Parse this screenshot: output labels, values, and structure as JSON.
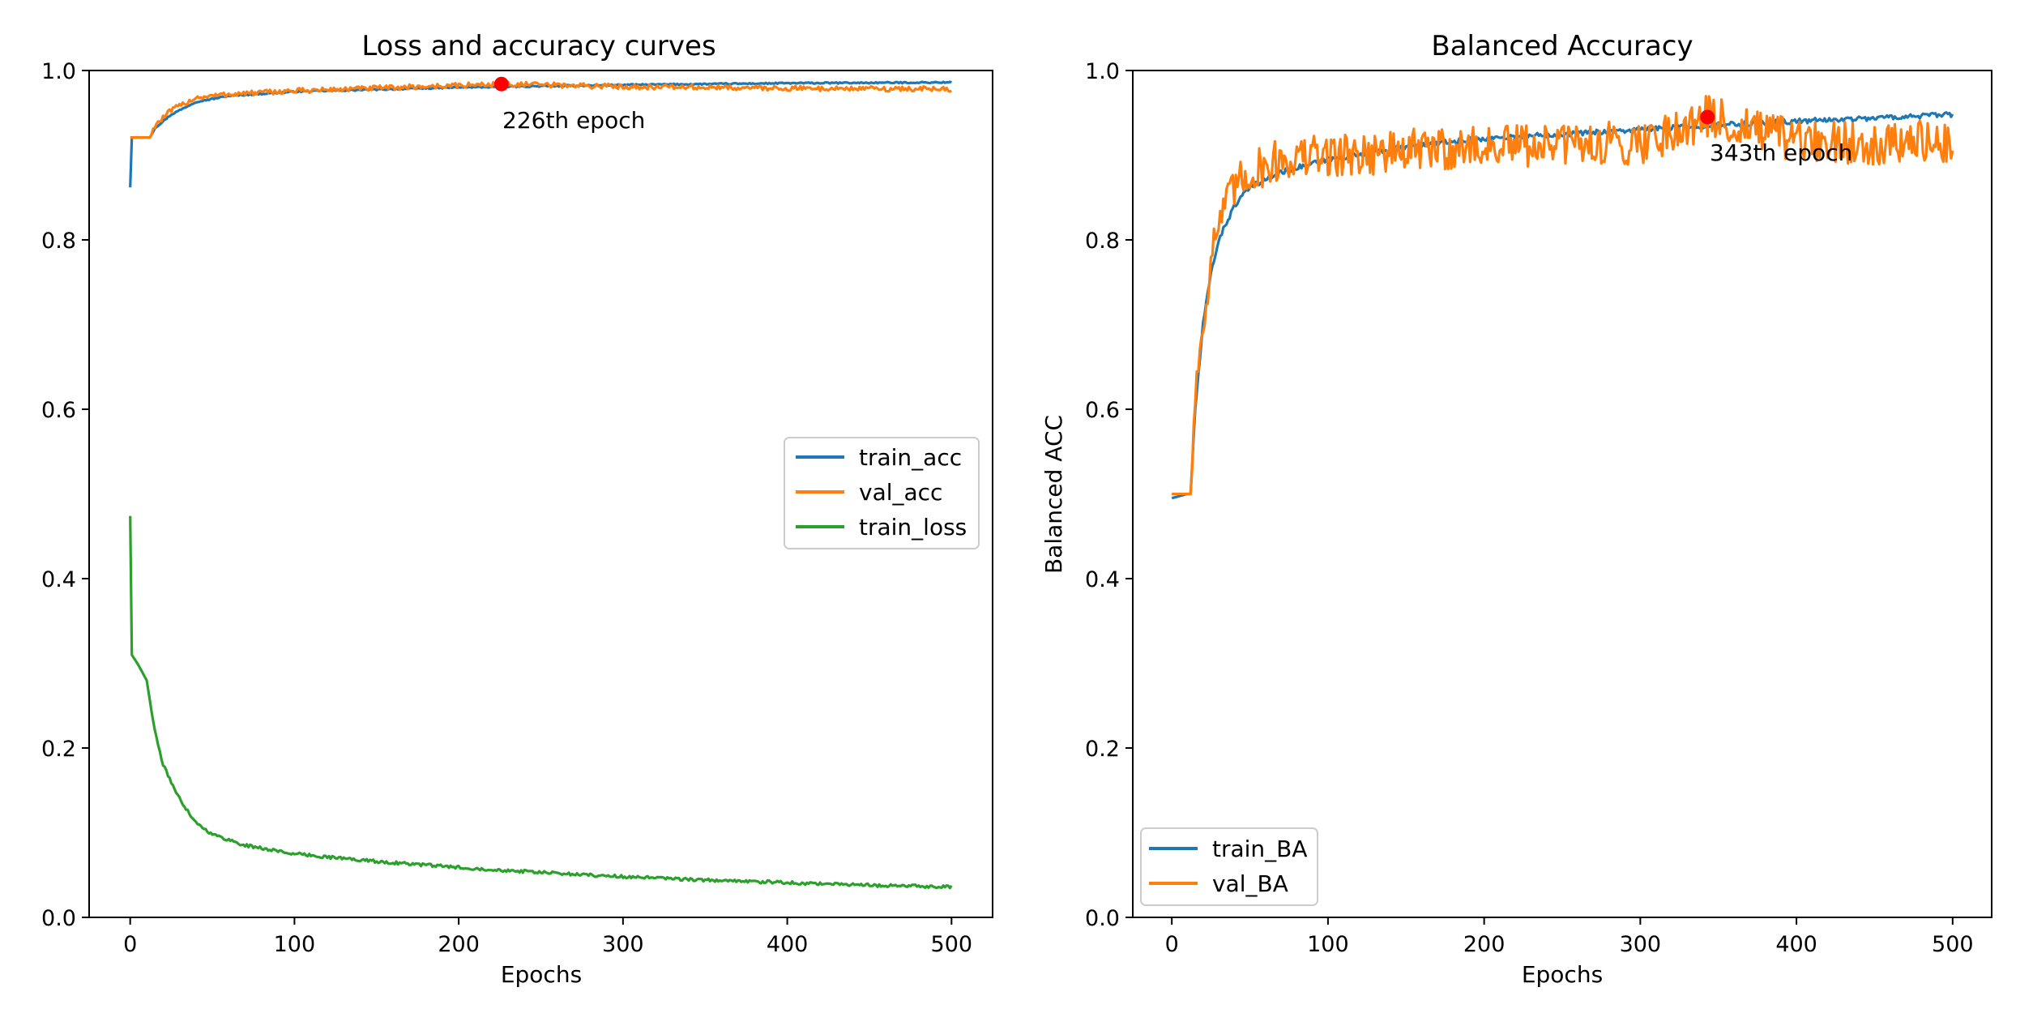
{
  "chart_data": [
    {
      "type": "line",
      "title": "Loss and accuracy curves",
      "xlabel": "Epochs",
      "ylabel": "",
      "xlim": [
        -25,
        525
      ],
      "ylim": [
        0.0,
        1.0
      ],
      "xticks": [
        0,
        100,
        200,
        300,
        400,
        500
      ],
      "yticks": [
        0.0,
        0.2,
        0.4,
        0.6,
        0.8,
        1.0
      ],
      "xtick_labels": [
        "0",
        "100",
        "200",
        "300",
        "400",
        "500"
      ],
      "ytick_labels": [
        "0.0",
        "0.2",
        "0.4",
        "0.6",
        "0.8",
        "1.0"
      ],
      "legend_position": "center-right",
      "series": [
        {
          "name": "train_acc",
          "color": "#1f77b4",
          "noise": 0.0008,
          "points": [
            [
              0,
              0.862
            ],
            [
              1,
              0.921
            ],
            [
              5,
              0.921
            ],
            [
              12,
              0.921
            ],
            [
              15,
              0.932
            ],
            [
              25,
              0.948
            ],
            [
              40,
              0.963
            ],
            [
              60,
              0.97
            ],
            [
              100,
              0.975
            ],
            [
              200,
              0.98
            ],
            [
              300,
              0.983
            ],
            [
              400,
              0.985
            ],
            [
              500,
              0.986
            ]
          ]
        },
        {
          "name": "val_acc",
          "color": "#ff7f0e",
          "noise": 0.003,
          "points": [
            [
              0,
              0.921
            ],
            [
              12,
              0.921
            ],
            [
              15,
              0.935
            ],
            [
              25,
              0.953
            ],
            [
              40,
              0.968
            ],
            [
              60,
              0.972
            ],
            [
              100,
              0.976
            ],
            [
              226,
              0.984
            ],
            [
              300,
              0.981
            ],
            [
              400,
              0.979
            ],
            [
              500,
              0.978
            ]
          ]
        },
        {
          "name": "train_loss",
          "color": "#2ca02c",
          "noise": 0.0018,
          "points": [
            [
              0,
              0.474
            ],
            [
              1,
              0.31
            ],
            [
              5,
              0.298
            ],
            [
              10,
              0.28
            ],
            [
              15,
              0.22
            ],
            [
              20,
              0.18
            ],
            [
              30,
              0.14
            ],
            [
              40,
              0.112
            ],
            [
              50,
              0.098
            ],
            [
              70,
              0.085
            ],
            [
              100,
              0.075
            ],
            [
              150,
              0.066
            ],
            [
              200,
              0.059
            ],
            [
              250,
              0.053
            ],
            [
              300,
              0.048
            ],
            [
              350,
              0.044
            ],
            [
              400,
              0.041
            ],
            [
              450,
              0.038
            ],
            [
              500,
              0.036
            ]
          ]
        }
      ],
      "marker": {
        "x": 226,
        "y": 0.984,
        "color": "#ff0000"
      },
      "annotation": {
        "text": "226th epoch",
        "x": 226,
        "y": 0.984
      }
    },
    {
      "type": "line",
      "title": "Balanced Accuracy",
      "xlabel": "Epochs",
      "ylabel": "Balanced ACC",
      "xlim": [
        -25,
        525
      ],
      "ylim": [
        0.0,
        1.0
      ],
      "xticks": [
        0,
        100,
        200,
        300,
        400,
        500
      ],
      "yticks": [
        0.0,
        0.2,
        0.4,
        0.6,
        0.8,
        1.0
      ],
      "xtick_labels": [
        "0",
        "100",
        "200",
        "300",
        "400",
        "500"
      ],
      "ytick_labels": [
        "0.0",
        "0.2",
        "0.4",
        "0.6",
        "0.8",
        "1.0"
      ],
      "legend_position": "lower-left",
      "series": [
        {
          "name": "train_BA",
          "color": "#1f77b4",
          "noise": 0.003,
          "points": [
            [
              0,
              0.495
            ],
            [
              10,
              0.5
            ],
            [
              12,
              0.5
            ],
            [
              15,
              0.6
            ],
            [
              20,
              0.7
            ],
            [
              25,
              0.76
            ],
            [
              30,
              0.8
            ],
            [
              40,
              0.84
            ],
            [
              50,
              0.862
            ],
            [
              70,
              0.88
            ],
            [
              100,
              0.895
            ],
            [
              150,
              0.91
            ],
            [
              200,
              0.92
            ],
            [
              250,
              0.925
            ],
            [
              300,
              0.93
            ],
            [
              343,
              0.935
            ],
            [
              400,
              0.94
            ],
            [
              450,
              0.944
            ],
            [
              500,
              0.948
            ]
          ]
        },
        {
          "name": "val_BA",
          "color": "#ff7f0e",
          "noise": 0.026,
          "points": [
            [
              0,
              0.5
            ],
            [
              12,
              0.5
            ],
            [
              15,
              0.62
            ],
            [
              20,
              0.7
            ],
            [
              25,
              0.78
            ],
            [
              30,
              0.82
            ],
            [
              40,
              0.86
            ],
            [
              50,
              0.88
            ],
            [
              70,
              0.895
            ],
            [
              100,
              0.9
            ],
            [
              150,
              0.905
            ],
            [
              200,
              0.91
            ],
            [
              300,
              0.915
            ],
            [
              343,
              0.945
            ],
            [
              400,
              0.915
            ],
            [
              500,
              0.915
            ]
          ]
        }
      ],
      "marker": {
        "x": 343,
        "y": 0.945,
        "color": "#ff0000"
      },
      "annotation": {
        "text": "343th epoch",
        "x": 343,
        "y": 0.945
      }
    }
  ]
}
